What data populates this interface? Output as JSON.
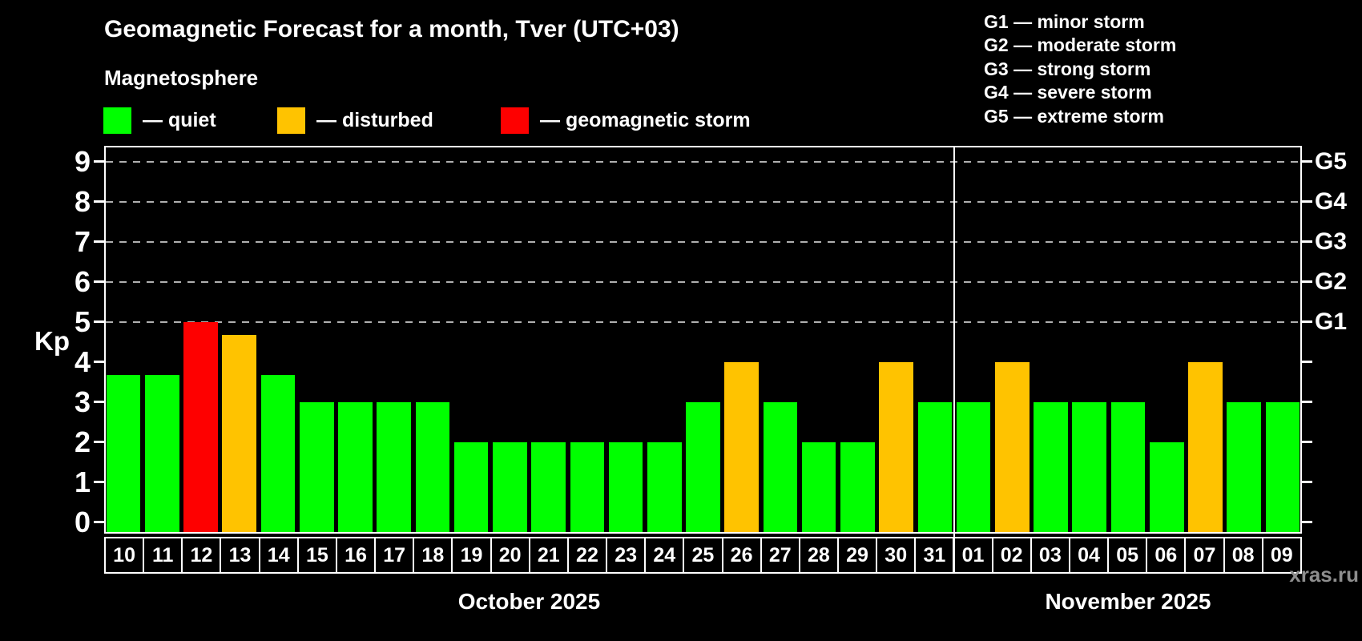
{
  "header": {
    "title": "Geomagnetic Forecast for a month, Tver (UTC+03)",
    "subtitle": "Magnetosphere"
  },
  "legend": {
    "items": [
      {
        "key": "quiet",
        "label": "— quiet"
      },
      {
        "key": "disturbed",
        "label": "— disturbed"
      },
      {
        "key": "storm",
        "label": "— geomagnetic storm"
      }
    ]
  },
  "g_legend": {
    "lines": [
      "G1 — minor storm",
      "G2 — moderate storm",
      "G3 — strong storm",
      "G4 — severe storm",
      "G5 — extreme storm"
    ]
  },
  "watermark": "xras.ru",
  "chart_data": {
    "type": "bar",
    "title": "Geomagnetic Forecast for a month, Tver (UTC+03)",
    "ylabel": "Kp",
    "ylim": [
      0,
      9.4
    ],
    "y_ticks": [
      0,
      1,
      2,
      3,
      4,
      5,
      6,
      7,
      8,
      9
    ],
    "grid_on": true,
    "grid_levels": [
      {
        "kp": 5,
        "label": "G1"
      },
      {
        "kp": 6,
        "label": "G2"
      },
      {
        "kp": 7,
        "label": "G3"
      },
      {
        "kp": 8,
        "label": "G4"
      },
      {
        "kp": 9,
        "label": "G5"
      }
    ],
    "status_colors": {
      "quiet": "#00ff00",
      "disturbed": "#ffc300",
      "storm": "#fe0000",
      "grid": "#b0b0b0",
      "axis": "#ffffff"
    },
    "months": [
      {
        "label": "October 2025",
        "days": [
          {
            "day": "10",
            "kp": 3.67,
            "status": "quiet"
          },
          {
            "day": "11",
            "kp": 3.67,
            "status": "quiet"
          },
          {
            "day": "12",
            "kp": 5.0,
            "status": "storm"
          },
          {
            "day": "13",
            "kp": 4.67,
            "status": "disturbed"
          },
          {
            "day": "14",
            "kp": 3.67,
            "status": "quiet"
          },
          {
            "day": "15",
            "kp": 3.0,
            "status": "quiet"
          },
          {
            "day": "16",
            "kp": 3.0,
            "status": "quiet"
          },
          {
            "day": "17",
            "kp": 3.0,
            "status": "quiet"
          },
          {
            "day": "18",
            "kp": 3.0,
            "status": "quiet"
          },
          {
            "day": "19",
            "kp": 2.0,
            "status": "quiet"
          },
          {
            "day": "20",
            "kp": 2.0,
            "status": "quiet"
          },
          {
            "day": "21",
            "kp": 2.0,
            "status": "quiet"
          },
          {
            "day": "22",
            "kp": 2.0,
            "status": "quiet"
          },
          {
            "day": "23",
            "kp": 2.0,
            "status": "quiet"
          },
          {
            "day": "24",
            "kp": 2.0,
            "status": "quiet"
          },
          {
            "day": "25",
            "kp": 3.0,
            "status": "quiet"
          },
          {
            "day": "26",
            "kp": 4.0,
            "status": "disturbed"
          },
          {
            "day": "27",
            "kp": 3.0,
            "status": "quiet"
          },
          {
            "day": "28",
            "kp": 2.0,
            "status": "quiet"
          },
          {
            "day": "29",
            "kp": 2.0,
            "status": "quiet"
          },
          {
            "day": "30",
            "kp": 4.0,
            "status": "disturbed"
          },
          {
            "day": "31",
            "kp": 3.0,
            "status": "quiet"
          }
        ]
      },
      {
        "label": "November 2025",
        "days": [
          {
            "day": "01",
            "kp": 3.0,
            "status": "quiet"
          },
          {
            "day": "02",
            "kp": 4.0,
            "status": "disturbed"
          },
          {
            "day": "03",
            "kp": 3.0,
            "status": "quiet"
          },
          {
            "day": "04",
            "kp": 3.0,
            "status": "quiet"
          },
          {
            "day": "05",
            "kp": 3.0,
            "status": "quiet"
          },
          {
            "day": "06",
            "kp": 2.0,
            "status": "quiet"
          },
          {
            "day": "07",
            "kp": 4.0,
            "status": "disturbed"
          },
          {
            "day": "08",
            "kp": 3.0,
            "status": "quiet"
          },
          {
            "day": "09",
            "kp": 3.0,
            "status": "quiet"
          }
        ]
      }
    ]
  }
}
